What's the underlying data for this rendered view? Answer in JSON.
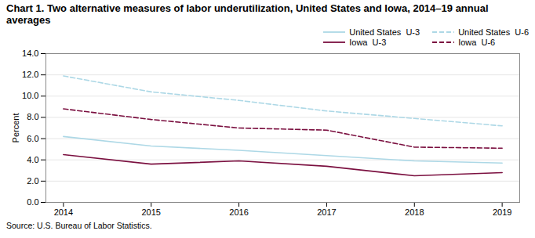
{
  "chart_data": {
    "type": "line",
    "title": "Chart 1. Two alternative measures of labor underutilization, United States and Iowa, 2014–19 annual averages",
    "ylabel": "Percent",
    "source": "Source: U.S. Bureau of Labor Statistics.",
    "x": [
      2014,
      2015,
      2016,
      2017,
      2018,
      2019
    ],
    "series": [
      {
        "name": "United States  U-3",
        "color": "#add8e6",
        "line_style": "solid",
        "values": [
          6.2,
          5.3,
          4.9,
          4.4,
          3.9,
          3.7
        ]
      },
      {
        "name": "United States  U-6",
        "color": "#add8e6",
        "line_style": "dashed",
        "values": [
          11.9,
          10.4,
          9.6,
          8.6,
          7.9,
          7.2
        ]
      },
      {
        "name": "Iowa  U-3",
        "color": "#7b1040",
        "line_style": "solid",
        "values": [
          4.5,
          3.6,
          3.9,
          3.4,
          2.5,
          2.8
        ]
      },
      {
        "name": "Iowa  U-6",
        "color": "#7b1040",
        "line_style": "dashed",
        "values": [
          8.8,
          7.8,
          7.0,
          6.8,
          5.2,
          5.1
        ]
      }
    ],
    "xlim": [
      2013.8,
      2019.2
    ],
    "xticks": [
      2014,
      2015,
      2016,
      2017,
      2018,
      2019
    ],
    "ylim": [
      0.0,
      14.0
    ],
    "yticks": [
      {
        "value": 0.0,
        "label": "0.0"
      },
      {
        "value": 2.0,
        "label": "2.0"
      },
      {
        "value": 4.0,
        "label": "4.0"
      },
      {
        "value": 6.0,
        "label": "6.0"
      },
      {
        "value": 8.0,
        "label": "8.0"
      },
      {
        "value": 10.0,
        "label": "10.0"
      },
      {
        "value": 12.0,
        "label": "12.0"
      },
      {
        "value": 14.0,
        "label": "14.0"
      }
    ],
    "grid": "y",
    "legend": "upper right"
  }
}
